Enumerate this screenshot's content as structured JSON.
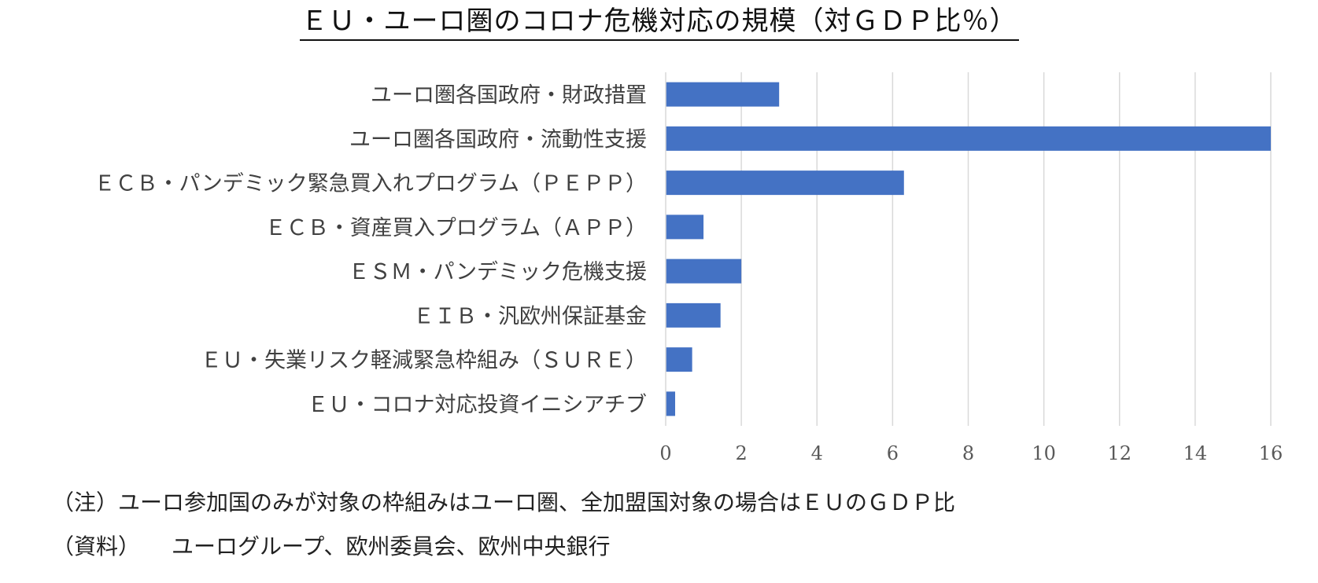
{
  "chart_data": {
    "type": "bar",
    "orientation": "horizontal",
    "title": "ＥＵ・ユーロ圏のコロナ危機対応の規模（対ＧＤＰ比％）",
    "categories": [
      "ユーロ圏各国政府・財政措置",
      "ユーロ圏各国政府・流動性支援",
      "ＥＣＢ・パンデミック緊急買入れプログラム（ＰＥＰＰ）",
      "ＥＣＢ・資産買入プログラム（ＡＰＰ）",
      "ＥＳＭ・パンデミック危機支援",
      "ＥＩＢ・汎欧州保証基金",
      "ＥＵ・失業リスク軽減緊急枠組み（ＳＵＲＥ）",
      "ＥＵ・コロナ対応投資イニシアチブ"
    ],
    "values": [
      3.0,
      16.0,
      6.3,
      1.0,
      2.0,
      1.45,
      0.7,
      0.25
    ],
    "xlim": [
      0,
      16
    ],
    "xticks": [
      0,
      2,
      4,
      6,
      8,
      10,
      12,
      14,
      16
    ],
    "grid": true,
    "legend": "none",
    "bar_color": "#4472C4",
    "grid_color": "#d9d9d9"
  },
  "notes": {
    "note": "（注）ユーロ参加国のみが対象の枠組みはユーロ圏、全加盟国対象の場合はＥＵのＧＤＰ比",
    "source_label": "（資料）",
    "source_text": "ユーログループ、欧州委員会、欧州中央銀行"
  }
}
